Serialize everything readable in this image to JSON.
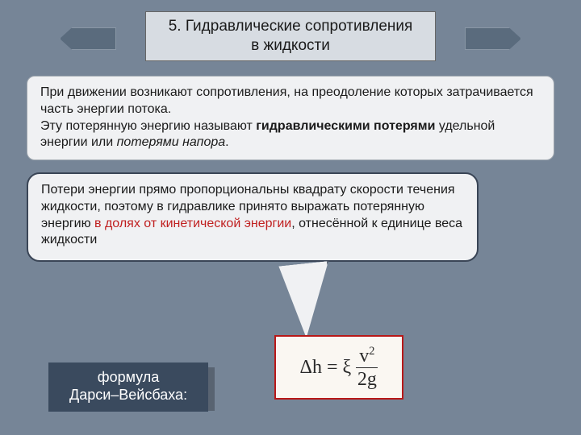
{
  "title": "5. Гидравлические сопротивления в жидкости",
  "box1": {
    "line1": "При движении возникают  сопротивления, на преодоление которых затрачивается часть энергии потока.",
    "line2a": "Эту потерянную энергию называют ",
    "line2b": "гидравлическими потерями",
    "line2c": " удельной энергии или ",
    "line2d": "потерями напора",
    "line2e": "."
  },
  "bubble": {
    "p1": "Потери энергии прямо пропорциональны квадрату скорости течения жидкости, поэтому в гидравлике принято выражать потерянную энергию ",
    "red1": "в долях от кинетической энергии",
    "p2": ", отнесённой к единице веса жидкости"
  },
  "formula_label_l1": "формула",
  "formula_label_l2": "Дарси–Вейсбаха:",
  "formula": {
    "lhs": "Δh",
    "eq": "=",
    "xi": "ξ",
    "num_base": "v",
    "num_exp": "2",
    "den": "2g"
  },
  "colors": {
    "bg": "#768597",
    "panel": "#f0f1f3",
    "dark": "#3a4a5e",
    "red_text": "#c02020",
    "formula_border": "#b81818"
  }
}
